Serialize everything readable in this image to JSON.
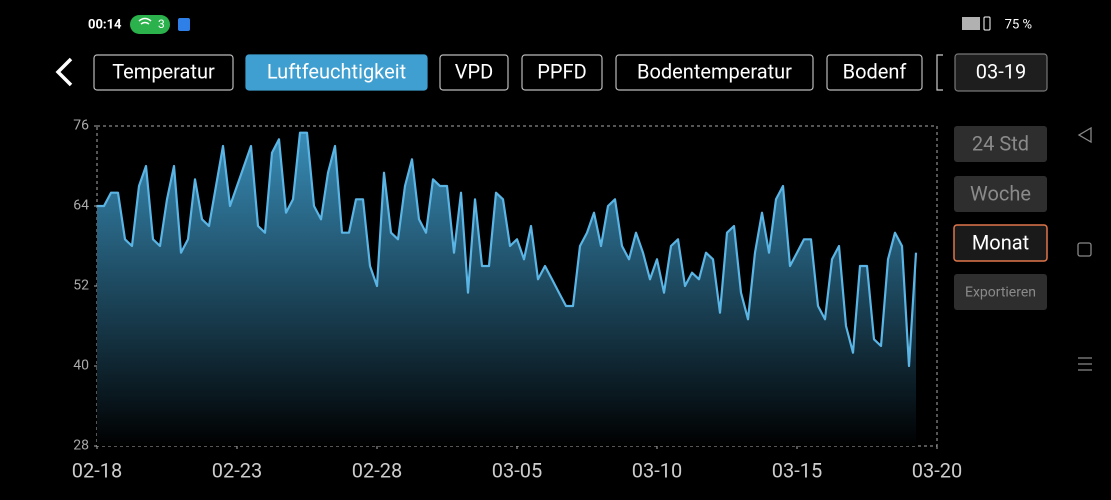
{
  "status_bar": {
    "time": "00:14",
    "wifi_count": "3",
    "battery": "75 %"
  },
  "tabs": [
    "Temperatur",
    "Luftfeuchtigkeit",
    "VPD",
    "PPFD",
    "Bodentemperatur",
    "Bodenf"
  ],
  "active_tab": 1,
  "date_button": "03-19",
  "range_buttons": [
    "24 Std",
    "Woche",
    "Monat",
    "Exportieren"
  ],
  "active_range": 2,
  "chart_data": {
    "type": "area",
    "color": "#5ab4e4",
    "ylim": [
      28,
      76
    ],
    "yticks": [
      28,
      40,
      52,
      64,
      76
    ],
    "xlim": [
      0,
      30
    ],
    "xticks": [
      {
        "value": 0,
        "label": "02-18"
      },
      {
        "value": 5,
        "label": "02-23"
      },
      {
        "value": 10,
        "label": "02-28"
      },
      {
        "value": 15,
        "label": "03-05"
      },
      {
        "value": 20,
        "label": "03-10"
      },
      {
        "value": 25,
        "label": "03-15"
      },
      {
        "value": 30,
        "label": "03-20"
      }
    ],
    "x": [
      0,
      0.25,
      0.5,
      0.75,
      1,
      1.25,
      1.5,
      1.75,
      2,
      2.25,
      2.5,
      2.75,
      3,
      3.25,
      3.5,
      3.75,
      4,
      4.25,
      4.5,
      4.75,
      5,
      5.25,
      5.5,
      5.75,
      6,
      6.25,
      6.5,
      6.75,
      7,
      7.25,
      7.5,
      7.75,
      8,
      8.25,
      8.5,
      8.75,
      9,
      9.25,
      9.5,
      9.75,
      10,
      10.25,
      10.5,
      10.75,
      11,
      11.25,
      11.5,
      11.75,
      12,
      12.25,
      12.5,
      12.75,
      13,
      13.25,
      13.5,
      13.75,
      14,
      14.25,
      14.5,
      14.75,
      15,
      15.25,
      15.5,
      15.75,
      16,
      16.25,
      16.5,
      16.75,
      17,
      17.25,
      17.5,
      17.75,
      18,
      18.25,
      18.5,
      18.75,
      19,
      19.25,
      19.5,
      19.75,
      20,
      20.25,
      20.5,
      20.75,
      21,
      21.25,
      21.5,
      21.75,
      22,
      22.25,
      22.5,
      22.75,
      23,
      23.25,
      23.5,
      23.75,
      24,
      24.25,
      24.5,
      24.75,
      25,
      25.25,
      25.5,
      25.75,
      26,
      26.25,
      26.5,
      26.75,
      27,
      27.25,
      27.5,
      27.75,
      28,
      28.25,
      28.5,
      28.75,
      29,
      29.25
    ],
    "values": [
      64,
      64,
      66,
      66,
      59,
      58,
      67,
      70,
      59,
      58,
      65,
      70,
      57,
      59,
      68,
      62,
      61,
      67,
      73,
      64,
      67,
      70,
      73,
      61,
      60,
      72,
      74,
      63,
      65,
      75,
      75,
      64,
      62,
      69,
      73,
      60,
      60,
      65,
      65,
      55,
      52,
      69,
      60,
      59,
      67,
      71,
      62,
      60,
      68,
      67,
      67,
      57,
      66,
      51,
      65,
      55,
      55,
      66,
      65,
      58,
      59,
      56,
      61,
      53,
      55,
      53,
      51,
      49,
      49,
      58,
      60,
      63,
      58,
      64,
      65,
      58,
      56,
      60,
      57,
      53,
      56,
      51,
      58,
      59,
      52,
      54,
      53,
      57,
      56,
      48,
      60,
      61,
      51,
      47,
      57,
      63,
      57,
      65,
      67,
      55,
      57,
      59,
      59,
      49,
      47,
      56,
      58,
      46,
      42,
      55,
      55,
      44,
      43,
      56,
      60,
      58,
      40,
      57
    ]
  }
}
